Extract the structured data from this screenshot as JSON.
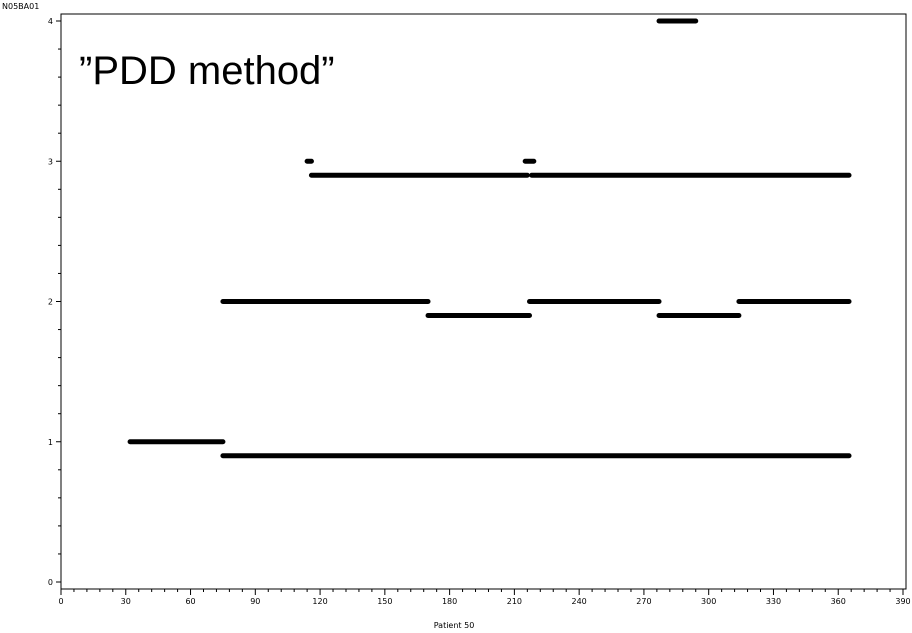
{
  "corner_label": "N05BA01",
  "overlay_text": "”PDD method”",
  "chart_data": {
    "type": "line",
    "xlabel": "Patient 50",
    "ylabel": "",
    "xlim": [
      0,
      390
    ],
    "ylim": [
      0,
      4
    ],
    "x_major_ticks": [
      0,
      30,
      60,
      90,
      120,
      150,
      180,
      210,
      240,
      270,
      300,
      330,
      360,
      390
    ],
    "x_tick_labels": [
      "0",
      "30",
      "60",
      "90",
      "120",
      "150",
      "180",
      "210",
      "240",
      "270",
      "300",
      "330",
      "360",
      "390"
    ],
    "y_major_ticks": [
      0,
      1,
      2,
      3,
      4
    ],
    "y_tick_labels": [
      "0",
      "1",
      "2",
      "3",
      "4"
    ],
    "grid": false,
    "series": [
      {
        "segments": [
          {
            "x": [
              32,
              75
            ],
            "y": 1
          },
          {
            "x": [
              75,
              365
            ],
            "y": 0.9
          },
          {
            "x": [
              75,
              170
            ],
            "y": 2
          },
          {
            "x": [
              170,
              217
            ],
            "y": 1.9
          },
          {
            "x": [
              217,
              277
            ],
            "y": 2
          },
          {
            "x": [
              277,
              314
            ],
            "y": 1.9
          },
          {
            "x": [
              314,
              365
            ],
            "y": 2
          },
          {
            "x": [
              114,
              116
            ],
            "y": 3
          },
          {
            "x": [
              116,
              216
            ],
            "y": 2.9
          },
          {
            "x": [
              215,
              219
            ],
            "y": 3
          },
          {
            "x": [
              218,
              365
            ],
            "y": 2.9
          },
          {
            "x": [
              277,
              294
            ],
            "y": 4
          }
        ]
      }
    ]
  }
}
